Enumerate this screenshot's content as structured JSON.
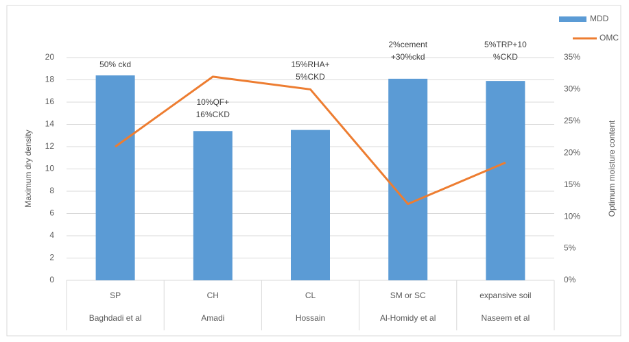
{
  "chart_data": {
    "type": "bar-line",
    "categories": [
      "SP",
      "CH",
      "CL",
      "SM or SC",
      "expansive soil"
    ],
    "category_groups": [
      "Baghdadi  et al",
      "Amadi",
      "Hossain",
      "Al-Homidy  et al",
      "Naseem et al"
    ],
    "series": [
      {
        "name": "MDD",
        "type": "bar",
        "color": "#5b9bd5",
        "values": [
          18.4,
          13.4,
          13.5,
          18.1,
          17.9
        ]
      },
      {
        "name": "OMC",
        "type": "line",
        "axis": "y2",
        "color": "#ed7d31",
        "values": [
          21,
          32,
          30,
          12,
          18.5
        ]
      }
    ],
    "annotations": [
      [
        "50% ckd"
      ],
      [
        "10%QF+",
        "16%CKD"
      ],
      [
        "15%RHA+",
        "5%CKD"
      ],
      [
        "2%cement",
        "+30%ckd"
      ],
      [
        "5%TRP+10",
        "%CKD"
      ]
    ],
    "y_label": "Maximum dry density",
    "y2_label": "Optimum moisture content",
    "ylim": [
      0,
      20
    ],
    "yticks": [
      0,
      2,
      4,
      6,
      8,
      10,
      12,
      14,
      16,
      18,
      20
    ],
    "y2lim": [
      0,
      35
    ],
    "y2ticks": [
      {
        "value": 0,
        "label": "0%"
      },
      {
        "value": 5,
        "label": "5%"
      },
      {
        "value": 10,
        "label": "10%"
      },
      {
        "value": 15,
        "label": "15%"
      },
      {
        "value": 20,
        "label": "20%"
      },
      {
        "value": 25,
        "label": "25%"
      },
      {
        "value": 30,
        "label": "30%"
      },
      {
        "value": 35,
        "label": "35%"
      }
    ],
    "grid": true,
    "legend": "top-right"
  }
}
